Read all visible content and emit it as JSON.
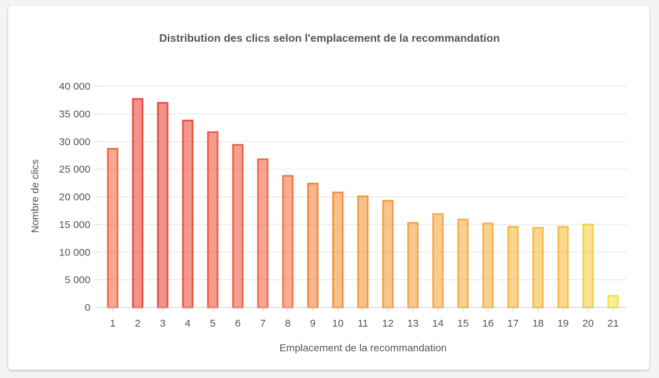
{
  "chart_data": {
    "type": "bar",
    "title": "Distribution des clics selon l'emplacement de la recommandation",
    "xlabel": "Emplacement de la recommandation",
    "ylabel": "Nombre de clics",
    "categories": [
      "1",
      "2",
      "3",
      "4",
      "5",
      "6",
      "7",
      "8",
      "9",
      "10",
      "11",
      "12",
      "13",
      "14",
      "15",
      "16",
      "17",
      "18",
      "19",
      "20",
      "21"
    ],
    "values": [
      28700,
      37700,
      37000,
      33800,
      31700,
      29400,
      26800,
      23800,
      22400,
      20800,
      20100,
      19300,
      15300,
      16900,
      15900,
      15200,
      14600,
      14400,
      14600,
      15000,
      2100
    ],
    "ylim": [
      0,
      40000
    ],
    "yticks": [
      0,
      5000,
      10000,
      15000,
      20000,
      25000,
      30000,
      35000,
      40000
    ],
    "ytick_labels": [
      "0",
      "5 000",
      "10 000",
      "15 000",
      "20 000",
      "25 000",
      "30 000",
      "35 000",
      "40 000"
    ],
    "grid": true,
    "colors": {
      "strong_red": "#e8453c",
      "red_orange": "#f06a4a",
      "orange": "#f4933f",
      "light_orange": "#f5b048",
      "yellow": "#f2e34a"
    }
  }
}
